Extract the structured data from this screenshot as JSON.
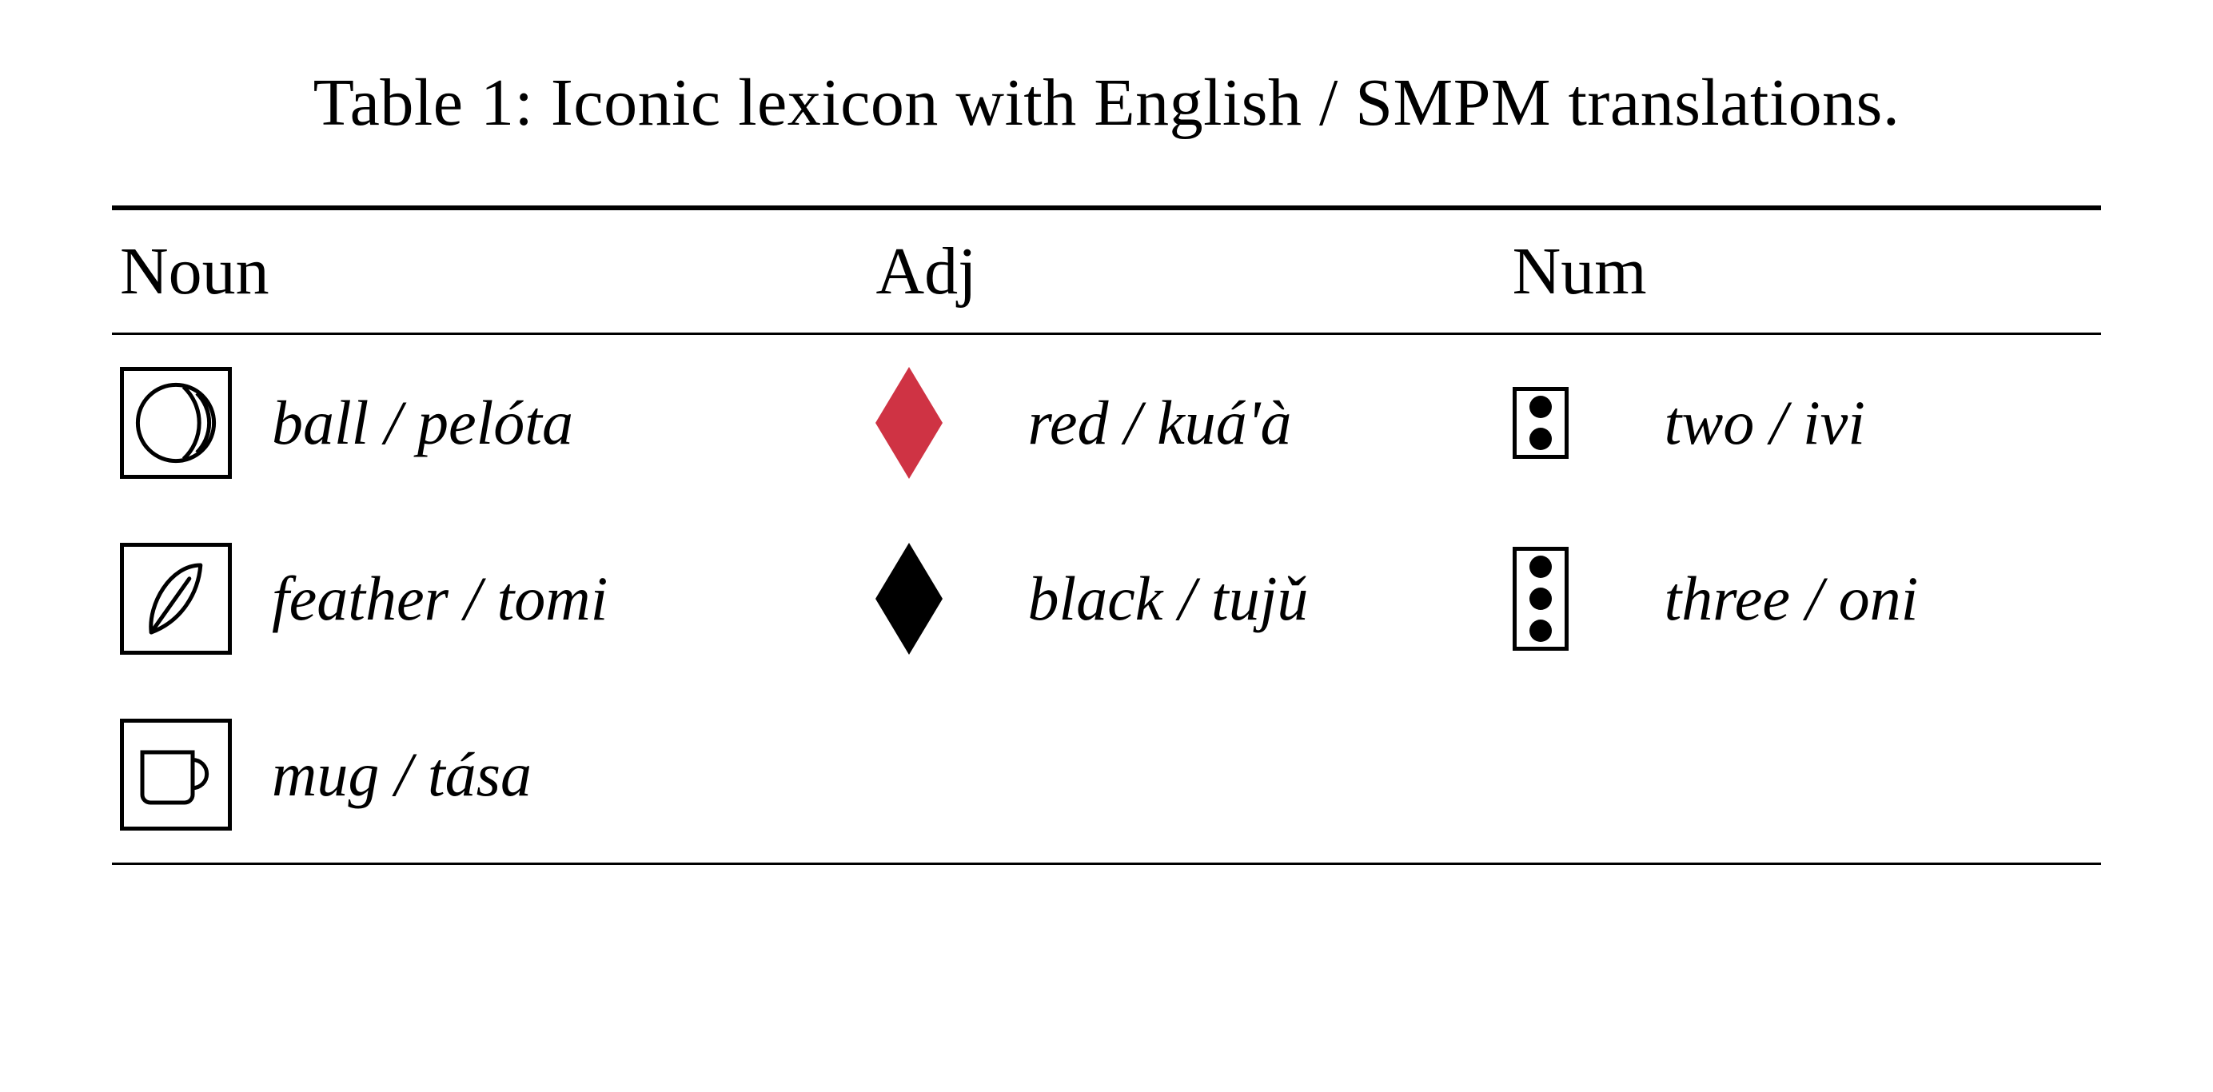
{
  "caption": "Table 1: Iconic lexicon with English / SMPM translations.",
  "headers": {
    "noun": "Noun",
    "adj": "Adj",
    "num": "Num"
  },
  "rows": [
    {
      "noun": {
        "icon": "ball",
        "label": "ball / pelóta"
      },
      "adj": {
        "icon": "diamond",
        "color": "#cf3344",
        "label": "red / kuá'à"
      },
      "num": {
        "icon": "dots",
        "count": 2,
        "label": "two / ivi"
      }
    },
    {
      "noun": {
        "icon": "feather",
        "label": "feather / tomi"
      },
      "adj": {
        "icon": "diamond",
        "color": "#000000",
        "label": "black / tujǔ"
      },
      "num": {
        "icon": "dots",
        "count": 3,
        "label": "three / oni"
      }
    },
    {
      "noun": {
        "icon": "mug",
        "label": "mug / tása"
      },
      "adj": null,
      "num": null
    }
  ],
  "style": {
    "font_family": "Georgia, Times, serif",
    "caption_fontsize": 84,
    "header_fontsize": 84,
    "label_fontsize": 78,
    "text_color": "#000000",
    "background_color": "#ffffff",
    "rule_color": "#000000",
    "toprule_width": 6,
    "midrule_width": 3,
    "botrule_width": 3,
    "icon_box_stroke": "#000000",
    "icon_box_stroke_width": 5,
    "icon_box_size": 140,
    "diamond_width": 84,
    "diamond_height": 140,
    "dot_radius": 14
  }
}
